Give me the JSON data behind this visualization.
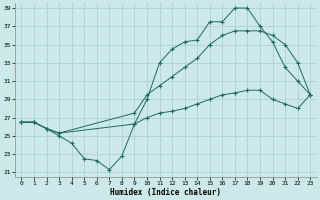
{
  "xlabel": "Humidex (Indice chaleur)",
  "bg_color": "#cce8e8",
  "grid_color": "#aacccc",
  "line_color": "#1a6b5a",
  "xlim": [
    -0.5,
    23.5
  ],
  "ylim": [
    20.5,
    39.5
  ],
  "yticks": [
    21,
    23,
    25,
    27,
    29,
    31,
    33,
    35,
    37,
    39
  ],
  "xticks": [
    0,
    1,
    2,
    3,
    4,
    5,
    6,
    7,
    8,
    9,
    10,
    11,
    12,
    13,
    14,
    15,
    16,
    17,
    18,
    19,
    20,
    21,
    22,
    23
  ],
  "line1_x": [
    0,
    1,
    2,
    3,
    4,
    5,
    6,
    7,
    8,
    9,
    10,
    11,
    12,
    13,
    14,
    15,
    16,
    17,
    18,
    19,
    20,
    21,
    22,
    23
  ],
  "line1_y": [
    26.5,
    26.5,
    25.8,
    25.0,
    24.2,
    22.5,
    22.3,
    21.3,
    22.8,
    26.3,
    29.0,
    33.0,
    34.5,
    35.3,
    35.5,
    37.5,
    37.5,
    39.0,
    39.0,
    37.0,
    35.3,
    32.5,
    31.0,
    29.5
  ],
  "line2_x": [
    0,
    1,
    2,
    3,
    9,
    10,
    11,
    12,
    13,
    14,
    15,
    16,
    17,
    18,
    19,
    20,
    21,
    22,
    23
  ],
  "line2_y": [
    26.5,
    26.5,
    25.8,
    25.3,
    27.5,
    29.5,
    30.5,
    31.5,
    32.5,
    33.5,
    35.0,
    36.0,
    36.5,
    36.5,
    36.5,
    36.0,
    35.0,
    33.0,
    29.5
  ],
  "line3_x": [
    0,
    1,
    2,
    3,
    9,
    10,
    11,
    12,
    13,
    14,
    15,
    16,
    17,
    18,
    19,
    20,
    21,
    22,
    23
  ],
  "line3_y": [
    26.5,
    26.5,
    25.8,
    25.3,
    26.3,
    27.0,
    27.5,
    27.7,
    28.0,
    28.5,
    29.0,
    29.5,
    29.7,
    30.0,
    30.0,
    29.0,
    28.5,
    28.0,
    29.5
  ]
}
